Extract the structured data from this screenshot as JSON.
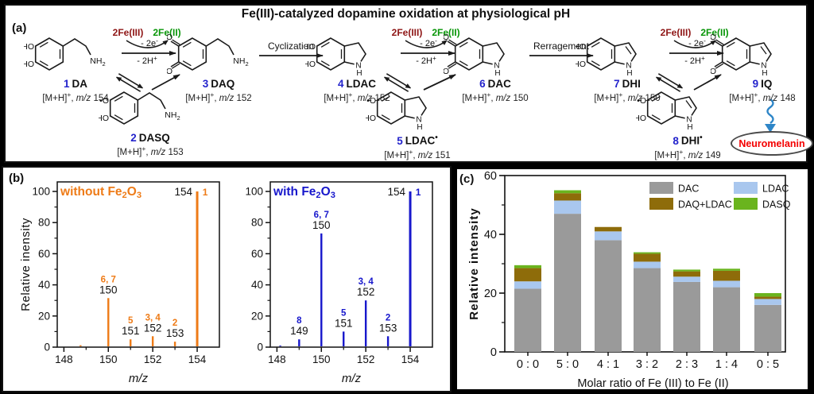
{
  "figure": {
    "panel_a": {
      "label": "(a)",
      "title": "Fe(III)-catalyzed dopamine oxidation at physiological pH",
      "compounds": [
        {
          "id": "da",
          "number": "1",
          "name": "DA",
          "radical": false,
          "ion": "[M+H]+, m/z 154",
          "topLeft": "HO",
          "bottomLeft": "HO",
          "scaffold": "chain"
        },
        {
          "id": "dasq",
          "number": "2",
          "name": "DASQ",
          "radical": false,
          "ion": "[M+H]+, m/z 153",
          "topLeft": "radical_o",
          "bottomLeft": "HO",
          "scaffold": "chain"
        },
        {
          "id": "daq",
          "number": "3",
          "name": "DAQ",
          "radical": false,
          "ion": "[M+H]+, m/z 152",
          "topLeft": "O",
          "bottomLeft": "O",
          "scaffold": "chain"
        },
        {
          "id": "ldac",
          "number": "4",
          "name": "LDAC",
          "radical": false,
          "ion": "[M+H]+, m/z 152",
          "topLeft": "HO",
          "bottomLeft": "HO",
          "scaffold": "indoline"
        },
        {
          "id": "ldac-r",
          "number": "5",
          "name": "LDAC",
          "radical": true,
          "ion": "[M+H]+, m/z 151",
          "topLeft": "radical_o",
          "bottomLeft": "HO",
          "scaffold": "indoline"
        },
        {
          "id": "dac",
          "number": "6",
          "name": "DAC",
          "radical": false,
          "ion": "[M+H]+, m/z 150",
          "topLeft": "O",
          "bottomLeft": "O",
          "scaffold": "indoline"
        },
        {
          "id": "dhi",
          "number": "7",
          "name": "DHI",
          "radical": false,
          "ion": "[M+H]+, m/z 150",
          "topLeft": "HO",
          "bottomLeft": "HO",
          "scaffold": "indole"
        },
        {
          "id": "dhi-r",
          "number": "8",
          "name": "DHI",
          "radical": true,
          "ion": "[M+H]+, m/z 149",
          "topLeft": "radical_o",
          "bottomLeft": "HO",
          "scaffold": "indole"
        },
        {
          "id": "iq",
          "number": "9",
          "name": "IQ",
          "radical": false,
          "ion": "[M+H]+, m/z 148",
          "topLeft": "O",
          "bottomLeft": "O",
          "scaffold": "indole"
        }
      ],
      "structure_labels": {
        "ho": "HO",
        "o": "O",
        "radical_o": "•O",
        "amine": "NH2",
        "n": "N",
        "h": "H"
      },
      "arrows": {
        "oxidant": "2Fe(III)",
        "reductant": "2Fe(II)",
        "electrons": "- 2e-",
        "protons": "- 2H+",
        "cyclization": "Cyclization",
        "rearrangement": "Rerragement"
      },
      "product": "Neuromelanin"
    },
    "panel_b": {
      "label": "(b)"
    },
    "panel_c": {
      "label": "(c)"
    }
  },
  "chart_data": [
    {
      "type": "line",
      "subtype": "mass-spectrum-stems",
      "title": "without Fe2O3",
      "xlabel": "m/z",
      "ylabel": "Relative inensity",
      "xticks": [
        148,
        150,
        152,
        154
      ],
      "xminor": [
        149,
        151,
        153
      ],
      "yticks": [
        0,
        20,
        40,
        60,
        80,
        100
      ],
      "yminor": [
        10,
        30,
        50,
        70,
        90
      ],
      "xlim": [
        147.7,
        155.0
      ],
      "ylim": [
        0,
        108
      ],
      "color": "#ee7b17",
      "peaks": [
        {
          "mz": 148.75,
          "h": 1.2,
          "num": "",
          "label": ""
        },
        {
          "mz": 150,
          "h": 31.5,
          "num": "6, 7",
          "label": "150"
        },
        {
          "mz": 151,
          "h": 5,
          "num": "5",
          "label": "151"
        },
        {
          "mz": 152,
          "h": 7,
          "num": "3, 4",
          "label": "152"
        },
        {
          "mz": 153,
          "h": 3.5,
          "num": "2",
          "label": "153"
        },
        {
          "mz": 154,
          "h": 100,
          "num": "1",
          "label": "154",
          "top": true
        }
      ]
    },
    {
      "type": "line",
      "subtype": "mass-spectrum-stems",
      "title": "with Fe2O3",
      "xlabel": "m/z",
      "ylabel": "",
      "xticks": [
        148,
        150,
        152,
        154
      ],
      "xminor": [
        149,
        151,
        153
      ],
      "yticks": [
        0,
        20,
        40,
        60,
        80,
        100
      ],
      "yminor": [
        10,
        30,
        50,
        70,
        90
      ],
      "xlim": [
        147.7,
        155.0
      ],
      "ylim": [
        0,
        108
      ],
      "color": "#1717cc",
      "peaks": [
        {
          "mz": 148.15,
          "h": 1.0,
          "num": "",
          "label": ""
        },
        {
          "mz": 149,
          "h": 5,
          "num": "8",
          "label": "149"
        },
        {
          "mz": 150,
          "h": 73,
          "num": "6, 7",
          "label": "150"
        },
        {
          "mz": 151,
          "h": 10,
          "num": "5",
          "label": "151"
        },
        {
          "mz": 152,
          "h": 30,
          "num": "3, 4",
          "label": "152"
        },
        {
          "mz": 153,
          "h": 7,
          "num": "2",
          "label": "153"
        },
        {
          "mz": 154,
          "h": 100,
          "num": "1",
          "label": "154",
          "top": true
        }
      ]
    },
    {
      "type": "bar",
      "subtype": "stacked",
      "title": "",
      "xlabel": "Molar ratio of Fe (III) to Fe (II)",
      "ylabel": "Relative intensity",
      "categories": [
        "0 : 0",
        "5 : 0",
        "4 : 1",
        "3 : 2",
        "2 : 3",
        "1 : 4",
        "0 : 5"
      ],
      "yticks": [
        0,
        20,
        40,
        60
      ],
      "yminor": [
        10,
        30,
        50
      ],
      "ylim": [
        0,
        60
      ],
      "legend_position": "top-right-inside",
      "series": [
        {
          "name": "DAC",
          "color": "#9a9a9a",
          "values": [
            21.5,
            47.0,
            38.0,
            28.5,
            23.8,
            22.0,
            16.0
          ]
        },
        {
          "name": "LDAC",
          "color": "#a9c7ee",
          "values": [
            2.5,
            4.5,
            3.0,
            2.2,
            1.8,
            2.2,
            2.0
          ]
        },
        {
          "name": "DAQ+LDAC",
          "color": "#8e6c0a",
          "values": [
            4.5,
            2.5,
            1.5,
            2.7,
            1.8,
            3.4,
            0.8
          ]
        },
        {
          "name": "DASQ",
          "color": "#6ab41e",
          "values": [
            1.0,
            1.0,
            0.0,
            0.5,
            0.6,
            0.7,
            1.2
          ]
        }
      ],
      "legend_order": [
        "DAC",
        "LDAC",
        "DAQ+LDAC",
        "DASQ"
      ]
    }
  ],
  "colors": {
    "oxidant_dark_red": "#8e1515",
    "reductant_green": "#089608",
    "compound_number_blue": "#2323cc",
    "neuromelanin_red": "#f40000",
    "wavy_arrow_blue": "#2e86c8",
    "scheme_black": "#1a1a1a"
  }
}
